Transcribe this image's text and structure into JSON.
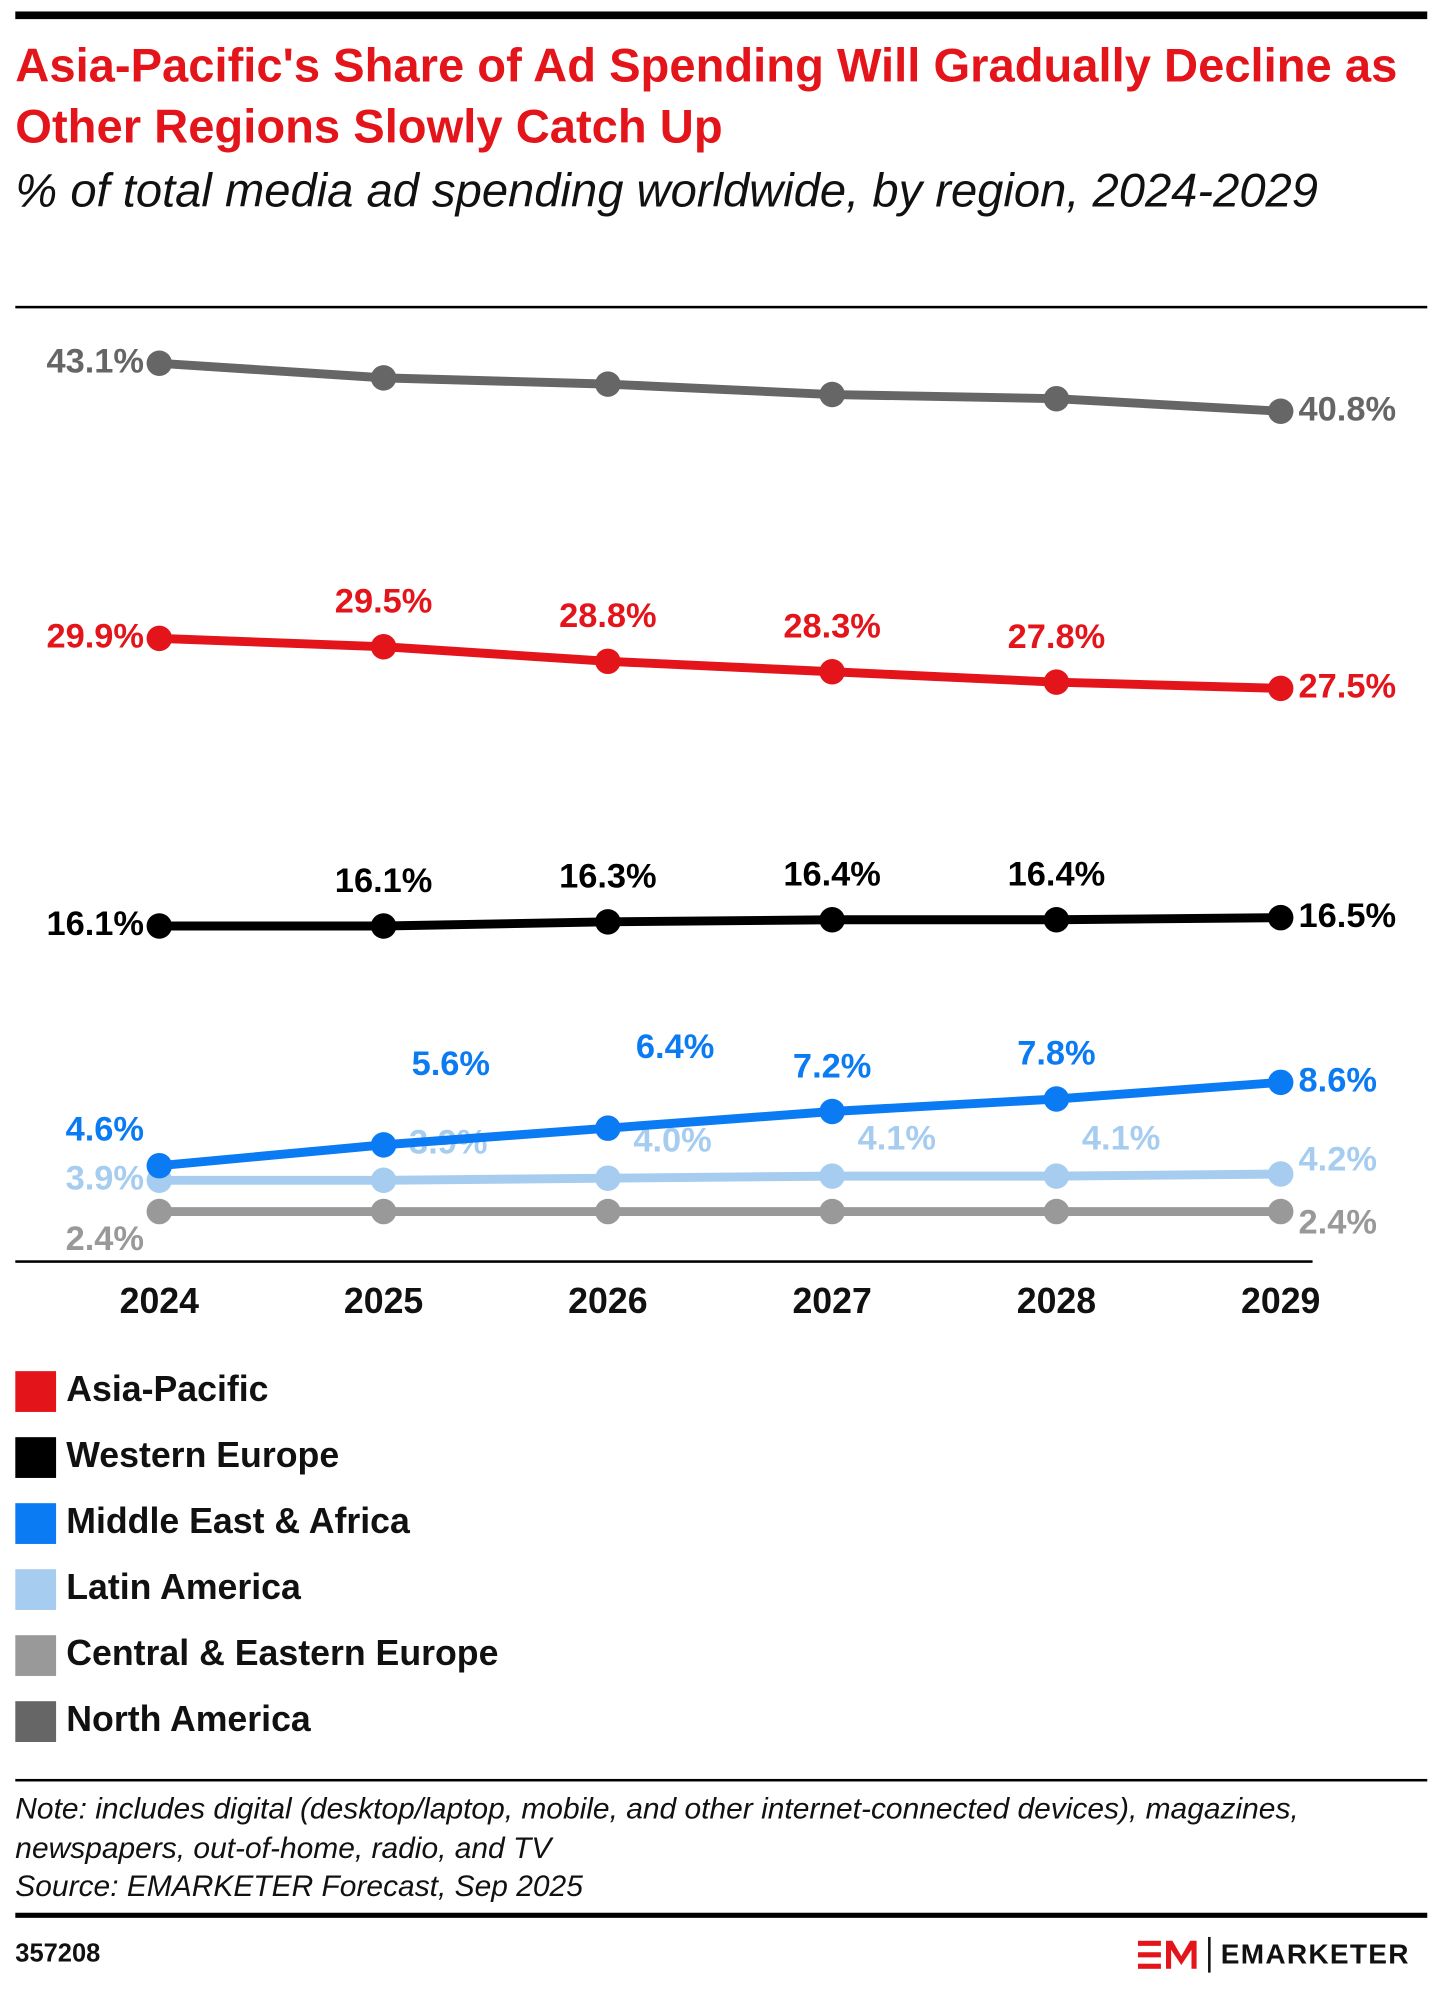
{
  "chart_data": {
    "type": "line",
    "title": "Asia-Pacific's Share of Ad Spending Will Gradually Decline as Other Regions Slowly Catch Up",
    "subtitle": "% of total media ad spending worldwide, by region, 2024-2029",
    "categories": [
      "2024",
      "2025",
      "2026",
      "2027",
      "2028",
      "2029"
    ],
    "ylim": [
      0,
      45
    ],
    "series": [
      {
        "name": "Asia-Pacific",
        "color": "#e4141b",
        "values": [
          29.9,
          29.5,
          28.8,
          28.3,
          27.8,
          27.5
        ],
        "value_labels": [
          "29.9%",
          "29.5%",
          "28.8%",
          "28.3%",
          "27.8%",
          "27.5%"
        ]
      },
      {
        "name": "Western Europe",
        "color": "#000000",
        "values": [
          16.1,
          16.1,
          16.3,
          16.4,
          16.4,
          16.5
        ],
        "value_labels": [
          "16.1%",
          "16.1%",
          "16.3%",
          "16.4%",
          "16.4%",
          "16.5%"
        ]
      },
      {
        "name": "Middle East & Africa",
        "color": "#0b7bf4",
        "values": [
          4.6,
          5.6,
          6.4,
          7.2,
          7.8,
          8.6
        ],
        "value_labels": [
          "4.6%",
          "5.6%",
          "6.4%",
          "7.2%",
          "7.8%",
          "8.6%"
        ]
      },
      {
        "name": "Latin America",
        "color": "#a6cdf0",
        "values": [
          3.9,
          3.9,
          4.0,
          4.1,
          4.1,
          4.2
        ],
        "value_labels": [
          "3.9%",
          "3.9%",
          "4.0%",
          "4.1%",
          "4.1%",
          "4.2%"
        ]
      },
      {
        "name": "Central & Eastern Europe",
        "color": "#999999",
        "values": [
          2.4,
          2.4,
          2.4,
          2.4,
          2.4,
          2.4
        ],
        "value_labels": [
          "2.4%",
          null,
          null,
          null,
          null,
          "2.4%"
        ]
      },
      {
        "name": "North America",
        "color": "#666666",
        "values": [
          43.1,
          42.4,
          42.1,
          41.6,
          41.4,
          40.8
        ],
        "value_labels": [
          "43.1%",
          null,
          null,
          null,
          null,
          "40.8%"
        ]
      }
    ]
  },
  "note": "Note: includes digital (desktop/laptop, mobile, and other internet-connected devices), magazines, newspapers, out-of-home, radio, and TV",
  "source": "Source: EMARKETER Forecast, Sep 2025",
  "chart_id": "357208",
  "brand": "EMARKETER"
}
